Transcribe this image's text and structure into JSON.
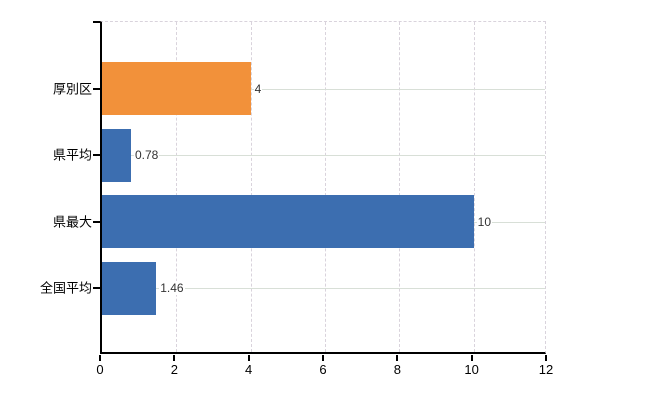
{
  "chart_data": {
    "type": "bar",
    "orientation": "horizontal",
    "title": "",
    "xlabel": "",
    "ylabel": "",
    "categories": [
      "厚別区",
      "県平均",
      "県最大",
      "全国平均"
    ],
    "values": [
      4,
      0.78,
      10,
      1.46
    ],
    "value_labels": [
      "4",
      "0.78",
      "10",
      "1.46"
    ],
    "bar_colors": [
      "#f2913a",
      "#3c6eb0",
      "#3c6eb0",
      "#3c6eb0"
    ],
    "xlim": [
      0,
      12
    ],
    "xticks": [
      0,
      2,
      4,
      6,
      8,
      10,
      12
    ],
    "grid": true,
    "legend_position": "none"
  },
  "colors": {
    "bar_blue": "#3c6eb0",
    "bar_orange": "#f2913a",
    "axis_line": "#000000",
    "h_gridline": "#d8dfd7",
    "v_gridline": "#d9d3dc",
    "value_text": "#333333",
    "axis_text": "#000000",
    "background": "#ffffff"
  }
}
